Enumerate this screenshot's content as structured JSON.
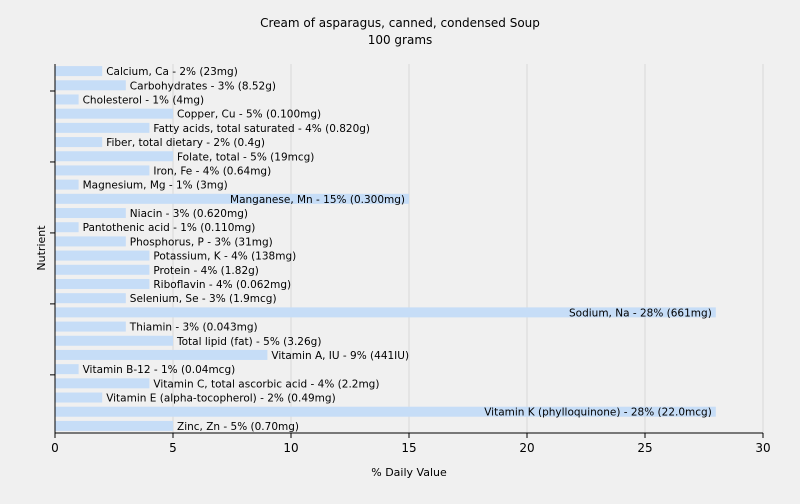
{
  "chart_data": {
    "type": "bar",
    "orientation": "horizontal",
    "title": "Cream of asparagus, canned, condensed Soup",
    "subtitle": "100 grams",
    "xlabel": "% Daily Value",
    "ylabel": "Nutrient",
    "xlim": [
      0,
      30
    ],
    "xticks": [
      0,
      5,
      10,
      15,
      20,
      25,
      30
    ],
    "grid": true,
    "bar_color": "#c6ddf7",
    "grid_color": "#d9d9d9",
    "background_color": "#f0f0f0",
    "categories": [
      "Calcium, Ca - 2% (23mg)",
      "Carbohydrates - 3% (8.52g)",
      "Cholesterol - 1% (4mg)",
      "Copper, Cu - 5% (0.100mg)",
      "Fatty acids, total saturated - 4% (0.820g)",
      "Fiber, total dietary - 2% (0.4g)",
      "Folate, total - 5% (19mcg)",
      "Iron, Fe - 4% (0.64mg)",
      "Magnesium, Mg - 1% (3mg)",
      "Manganese, Mn - 15% (0.300mg)",
      "Niacin - 3% (0.620mg)",
      "Pantothenic acid - 1% (0.110mg)",
      "Phosphorus, P - 3% (31mg)",
      "Potassium, K - 4% (138mg)",
      "Protein - 4% (1.82g)",
      "Riboflavin - 4% (0.062mg)",
      "Selenium, Se - 3% (1.9mcg)",
      "Sodium, Na - 28% (661mg)",
      "Thiamin - 3% (0.043mg)",
      "Total lipid (fat) - 5% (3.26g)",
      "Vitamin A, IU - 9% (441IU)",
      "Vitamin B-12 - 1% (0.04mcg)",
      "Vitamin C, total ascorbic acid - 4% (2.2mg)",
      "Vitamin E (alpha-tocopherol) - 2% (0.49mg)",
      "Vitamin K (phylloquinone) - 28% (22.0mcg)",
      "Zinc, Zn - 5% (0.70mg)"
    ],
    "values": [
      2,
      3,
      1,
      5,
      4,
      2,
      5,
      4,
      1,
      15,
      3,
      1,
      3,
      4,
      4,
      4,
      3,
      28,
      3,
      5,
      9,
      1,
      4,
      2,
      28,
      5
    ]
  }
}
